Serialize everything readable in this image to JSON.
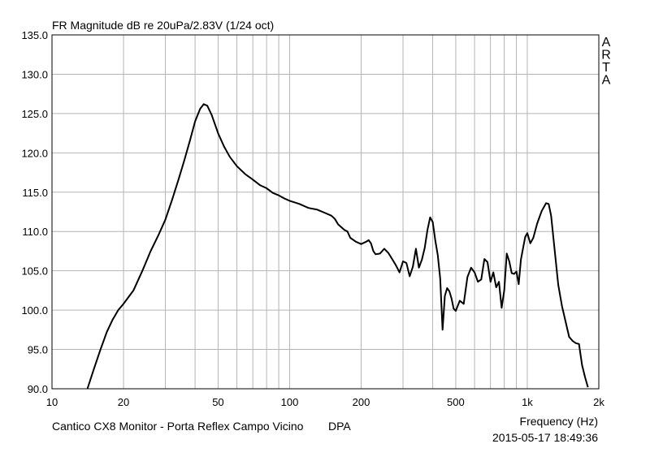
{
  "chart_data": {
    "type": "line",
    "title": "FR Magnitude dB re 20uPa/2.83V (1/24 oct)",
    "xlabel": "Frequency (Hz)",
    "ylabel": "",
    "x_scale": "log",
    "xlim": [
      10,
      2000
    ],
    "ylim": [
      90,
      135
    ],
    "x_ticks": [
      10,
      20,
      50,
      100,
      200,
      500,
      1000,
      2000
    ],
    "x_tick_labels": [
      "10",
      "20",
      "50",
      "100",
      "200",
      "500",
      "1k",
      "2k"
    ],
    "y_ticks": [
      90,
      95,
      100,
      105,
      110,
      115,
      120,
      125,
      130,
      135
    ],
    "y_tick_labels": [
      "90.0",
      "95.0",
      "100.0",
      "105.0",
      "110.0",
      "115.0",
      "120.0",
      "125.0",
      "130.0",
      "135.0"
    ],
    "grid": true,
    "brand": [
      "A",
      "R",
      "T",
      "A"
    ],
    "footer_left": "Cantico CX8 Monitor - Porta Reflex Campo Vicino",
    "footer_mid": "DPA",
    "timestamp": "2015-05-17  18:49:36",
    "line_color": "#000000",
    "series": [
      {
        "x": [
          14.1,
          15,
          16,
          17,
          18,
          19,
          20,
          22,
          24,
          26,
          28,
          30,
          32,
          34,
          36,
          38,
          40,
          42,
          43.5,
          45,
          47,
          50,
          53,
          56,
          60,
          65,
          70,
          75,
          80,
          85,
          90,
          95,
          100,
          110,
          120,
          130,
          140,
          150,
          155,
          160,
          170,
          175,
          180,
          190,
          200,
          210,
          215,
          220,
          225,
          230,
          240,
          250,
          260,
          270,
          280,
          290,
          300,
          310,
          320,
          330,
          340,
          350,
          360,
          370,
          380,
          390,
          400,
          410,
          420,
          430,
          440,
          450,
          460,
          470,
          480,
          490,
          500,
          520,
          540,
          560,
          580,
          600,
          620,
          640,
          660,
          680,
          700,
          720,
          740,
          760,
          780,
          800,
          820,
          840,
          860,
          880,
          900,
          920,
          940,
          960,
          980,
          1000,
          1030,
          1060,
          1100,
          1150,
          1200,
          1230,
          1260,
          1300,
          1350,
          1400,
          1450,
          1500,
          1550,
          1600,
          1650,
          1700,
          1750,
          1800
        ],
        "y": [
          90,
          92.5,
          95,
          97.2,
          98.8,
          100,
          100.8,
          102.5,
          105,
          107.5,
          109.5,
          111.5,
          114,
          116.5,
          119,
          121.5,
          124,
          125.6,
          126.2,
          126,
          124.8,
          122.5,
          120.8,
          119.5,
          118.3,
          117.3,
          116.6,
          115.9,
          115.5,
          114.9,
          114.6,
          114.2,
          113.9,
          113.5,
          113,
          112.8,
          112.4,
          112,
          111.6,
          110.9,
          110.2,
          110,
          109.2,
          108.7,
          108.4,
          108.7,
          108.9,
          108.5,
          107.5,
          107.1,
          107.2,
          107.8,
          107.3,
          106.5,
          105.7,
          104.8,
          106.2,
          106,
          104.3,
          105.5,
          107.8,
          105.4,
          106.4,
          107.9,
          110.2,
          111.8,
          111.2,
          108.9,
          107,
          104,
          97.5,
          101.8,
          102.8,
          102.4,
          101.5,
          100.2,
          99.9,
          101.2,
          100.8,
          104.2,
          105.4,
          104.8,
          103.6,
          103.9,
          106.5,
          106.1,
          103.6,
          104.8,
          102.9,
          103.6,
          100.3,
          102.5,
          107.2,
          106.2,
          104.7,
          104.6,
          104.9,
          103.3,
          106.4,
          107.9,
          109.3,
          109.8,
          108.5,
          109.2,
          111,
          112.6,
          113.6,
          113.5,
          112,
          108,
          103.2,
          100.5,
          98.5,
          96.6,
          96.1,
          95.8,
          95.7,
          93,
          91.5,
          90.2
        ]
      }
    ]
  }
}
